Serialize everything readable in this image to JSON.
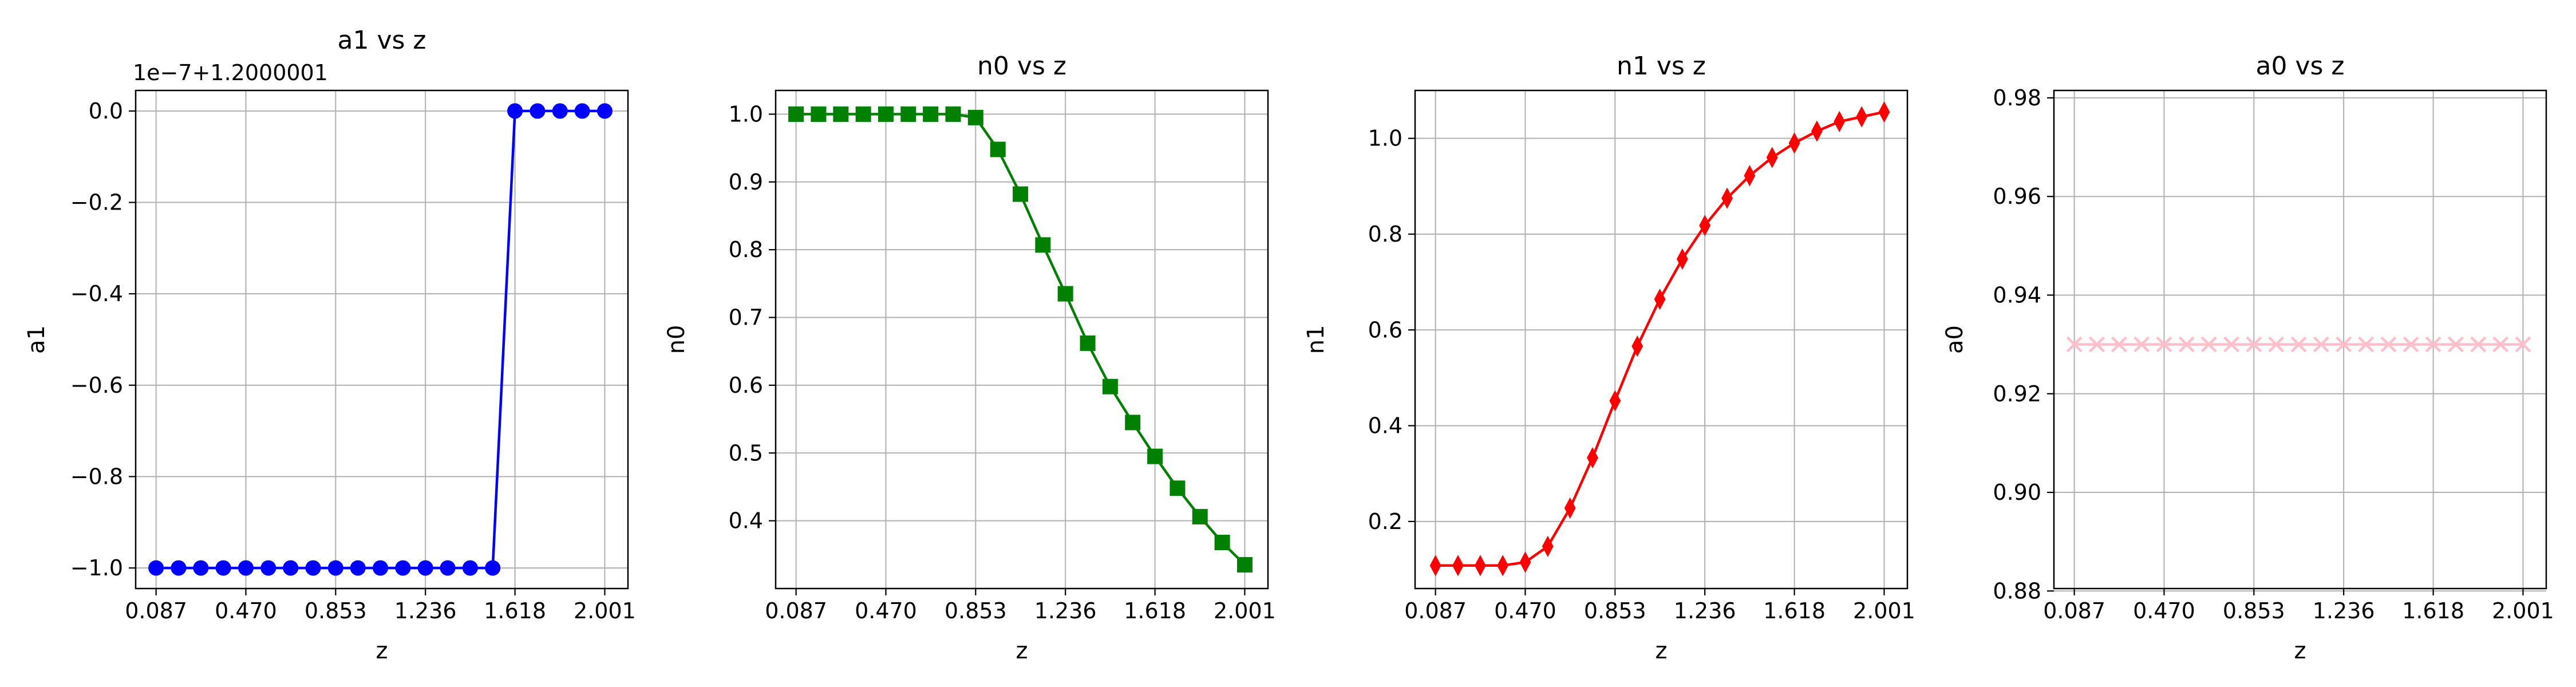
{
  "chart_data": [
    {
      "type": "line",
      "title": "a1 vs z",
      "xlabel": "z",
      "ylabel": "a1",
      "offset_text": "1e−7+1.2000001",
      "color": "#0000ff",
      "marker": "circle",
      "xlim": [
        0.0,
        2.1
      ],
      "ylim": [
        -1.045,
        0.045
      ],
      "xticks": [
        0.087,
        0.47,
        0.853,
        1.236,
        1.618,
        2.001
      ],
      "xtick_labels": [
        "0.087",
        "0.470",
        "0.853",
        "1.236",
        "1.618",
        "2.001"
      ],
      "yticks": [
        0.0,
        -0.2,
        -0.4,
        -0.6,
        -0.8,
        -1.0
      ],
      "ytick_labels": [
        "0.0",
        "−0.2",
        "−0.4",
        "−0.6",
        "−0.8",
        "−1.0"
      ],
      "grid": true,
      "series": [
        {
          "x": [
            0.087,
            0.183,
            0.278,
            0.374,
            0.47,
            0.566,
            0.661,
            0.757,
            0.853,
            0.948,
            1.044,
            1.14,
            1.236,
            1.331,
            1.427,
            1.523,
            1.618,
            1.714,
            1.81,
            1.905,
            2.001
          ],
          "y": [
            -1,
            -1,
            -1,
            -1,
            -1,
            -1,
            -1,
            -1,
            -1,
            -1,
            -1,
            -1,
            -1,
            -1,
            -1,
            -1,
            0,
            0,
            0,
            0,
            0
          ]
        }
      ]
    },
    {
      "type": "line",
      "title": "n0 vs z",
      "xlabel": "z",
      "ylabel": "n0",
      "color": "#008000",
      "marker": "square",
      "xlim": [
        0.0,
        2.1
      ],
      "ylim": [
        0.3,
        1.035
      ],
      "xticks": [
        0.087,
        0.47,
        0.853,
        1.236,
        1.618,
        2.001
      ],
      "xtick_labels": [
        "0.087",
        "0.470",
        "0.853",
        "1.236",
        "1.618",
        "2.001"
      ],
      "yticks": [
        0.4,
        0.5,
        0.6,
        0.7,
        0.8,
        0.9,
        1.0
      ],
      "ytick_labels": [
        "0.4",
        "0.5",
        "0.6",
        "0.7",
        "0.8",
        "0.9",
        "1.0"
      ],
      "grid": true,
      "series": [
        {
          "x": [
            0.087,
            0.183,
            0.278,
            0.374,
            0.47,
            0.566,
            0.661,
            0.757,
            0.853,
            0.948,
            1.044,
            1.14,
            1.236,
            1.331,
            1.427,
            1.523,
            1.618,
            1.714,
            1.81,
            1.905,
            2.001
          ],
          "y": [
            1.0,
            1.0,
            1.0,
            1.0,
            1.0,
            1.0,
            1.0,
            1.0,
            0.995,
            0.948,
            0.882,
            0.807,
            0.735,
            0.662,
            0.598,
            0.545,
            0.495,
            0.448,
            0.406,
            0.368,
            0.335
          ]
        }
      ]
    },
    {
      "type": "line",
      "title": "n1 vs z",
      "xlabel": "z",
      "ylabel": "n1",
      "color": "#ff0000",
      "marker": "thin_diamond",
      "xlim": [
        0.0,
        2.1
      ],
      "ylim": [
        0.06,
        1.1
      ],
      "xticks": [
        0.087,
        0.47,
        0.853,
        1.236,
        1.618,
        2.001
      ],
      "xtick_labels": [
        "0.087",
        "0.470",
        "0.853",
        "1.236",
        "1.618",
        "2.001"
      ],
      "yticks": [
        0.2,
        0.4,
        0.6,
        0.8,
        1.0
      ],
      "ytick_labels": [
        "0.2",
        "0.4",
        "0.6",
        "0.8",
        "1.0"
      ],
      "grid": true,
      "series": [
        {
          "x": [
            0.087,
            0.183,
            0.278,
            0.374,
            0.47,
            0.566,
            0.661,
            0.757,
            0.853,
            0.948,
            1.044,
            1.14,
            1.236,
            1.331,
            1.427,
            1.523,
            1.618,
            1.714,
            1.81,
            1.905,
            2.001
          ],
          "y": [
            0.108,
            0.108,
            0.108,
            0.108,
            0.115,
            0.148,
            0.228,
            0.333,
            0.452,
            0.566,
            0.664,
            0.748,
            0.818,
            0.875,
            0.922,
            0.96,
            0.99,
            1.015,
            1.035,
            1.045,
            1.055
          ]
        }
      ]
    },
    {
      "type": "line",
      "title": "a0 vs z",
      "xlabel": "z",
      "ylabel": "a0",
      "color": "#ffc0cb",
      "marker": "x",
      "xlim": [
        0.0,
        2.1
      ],
      "ylim": [
        0.8805,
        0.9815
      ],
      "xticks": [
        0.087,
        0.47,
        0.853,
        1.236,
        1.618,
        2.001
      ],
      "xtick_labels": [
        "0.087",
        "0.470",
        "0.853",
        "1.236",
        "1.618",
        "2.001"
      ],
      "yticks": [
        0.88,
        0.9,
        0.92,
        0.94,
        0.96,
        0.98
      ],
      "ytick_labels": [
        "0.88",
        "0.90",
        "0.92",
        "0.94",
        "0.96",
        "0.98"
      ],
      "grid": true,
      "series": [
        {
          "x": [
            0.087,
            0.183,
            0.278,
            0.374,
            0.47,
            0.566,
            0.661,
            0.757,
            0.853,
            0.948,
            1.044,
            1.14,
            1.236,
            1.331,
            1.427,
            1.523,
            1.618,
            1.714,
            1.81,
            1.905,
            2.001
          ],
          "y": [
            0.93,
            0.93,
            0.93,
            0.93,
            0.93,
            0.93,
            0.93,
            0.93,
            0.93,
            0.93,
            0.93,
            0.93,
            0.93,
            0.93,
            0.93,
            0.93,
            0.93,
            0.93,
            0.93,
            0.93,
            0.93
          ]
        }
      ]
    }
  ]
}
